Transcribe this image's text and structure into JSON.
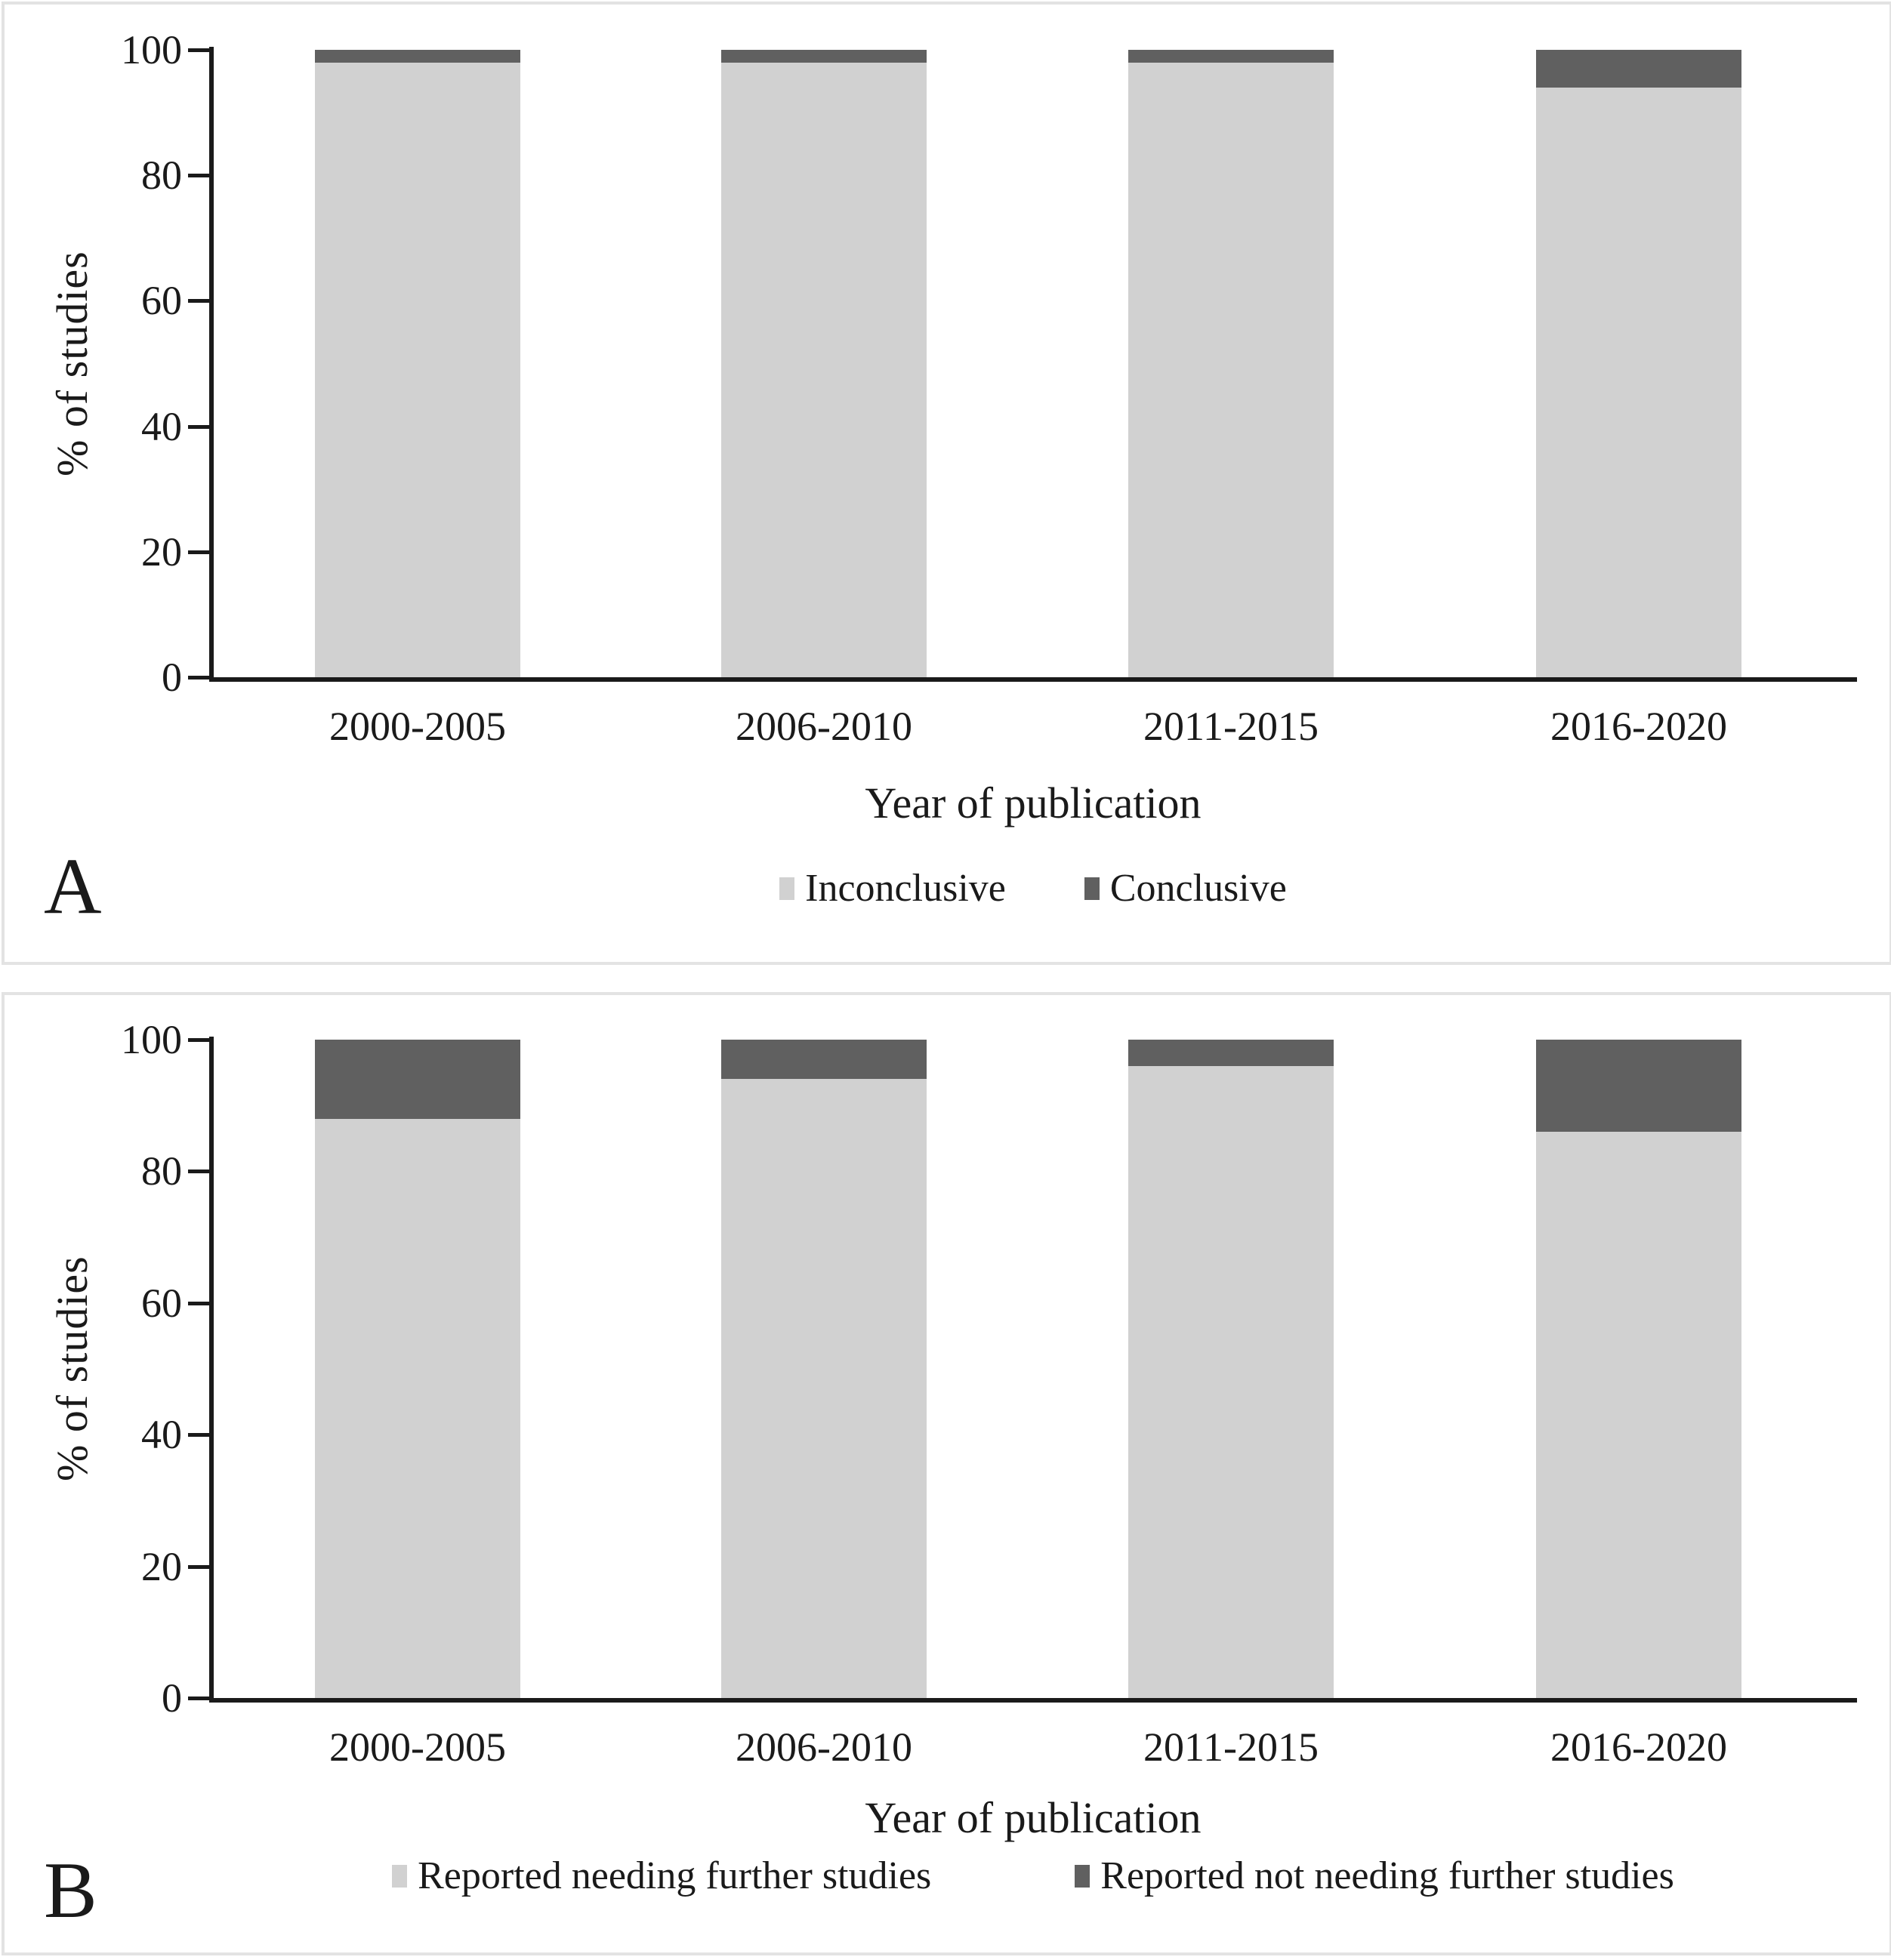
{
  "colors": {
    "light_gray": "#d1d1d1",
    "dark_gray": "#606060",
    "axis_black": "#1a1a1a",
    "frame_gray": "#e3e3e3"
  },
  "chart_data": [
    {
      "panel_label": "A",
      "type": "bar",
      "subtype": "stacked-percent",
      "categories": [
        "2000-2005",
        "2006-2010",
        "2011-2015",
        "2016-2020"
      ],
      "series": [
        {
          "name": "Inconclusive",
          "color": "light_gray",
          "values": [
            98,
            98,
            98,
            94
          ]
        },
        {
          "name": "Conclusive",
          "color": "dark_gray",
          "values": [
            2,
            2,
            2,
            6
          ]
        }
      ],
      "ylabel": "% of studies",
      "xlabel": "Year of publication",
      "yticks": [
        0,
        20,
        40,
        60,
        80,
        100
      ],
      "ylim": [
        0,
        100
      ],
      "grid": "off",
      "legend_position": "bottom"
    },
    {
      "panel_label": "B",
      "type": "bar",
      "subtype": "stacked-percent",
      "categories": [
        "2000-2005",
        "2006-2010",
        "2011-2015",
        "2016-2020"
      ],
      "series": [
        {
          "name": "Reported needing further studies",
          "color": "light_gray",
          "values": [
            88,
            94,
            96,
            86
          ]
        },
        {
          "name": "Reported not needing further studies",
          "color": "dark_gray",
          "values": [
            12,
            6,
            4,
            14
          ]
        }
      ],
      "ylabel": "% of studies",
      "xlabel": "Year of publication",
      "yticks": [
        0,
        20,
        40,
        60,
        80,
        100
      ],
      "ylim": [
        0,
        100
      ],
      "grid": "off",
      "legend_position": "bottom"
    }
  ]
}
